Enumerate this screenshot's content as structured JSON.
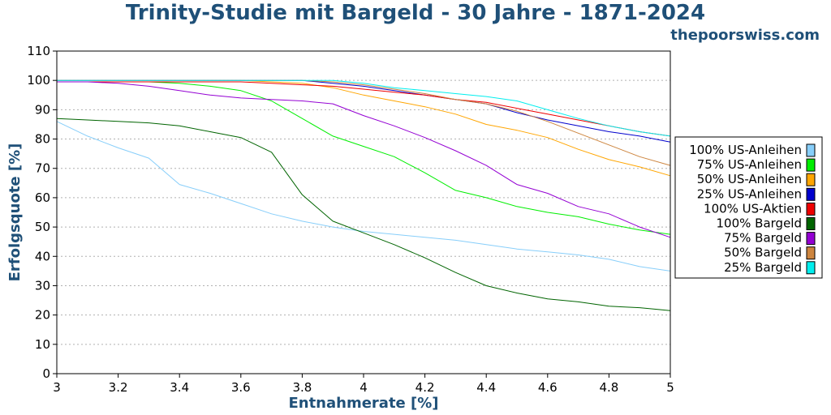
{
  "title": "Trinity-Studie mit Bargeld - 30 Jahre - 1871-2024",
  "site": "thepoorswiss.com",
  "chart_data": {
    "type": "line",
    "title": "Trinity-Studie mit Bargeld - 30 Jahre - 1871-2024",
    "xlabel": "Entnahmerate [%]",
    "ylabel": "Erfolgsquote [%]",
    "xlim": [
      3,
      5
    ],
    "ylim": [
      0,
      110
    ],
    "x_ticks": [
      "3",
      "3.2",
      "3.4",
      "3.6",
      "3.8",
      "4",
      "4.2",
      "4.4",
      "4.6",
      "4.8",
      "5"
    ],
    "y_ticks": [
      "0",
      "10",
      "20",
      "30",
      "40",
      "50",
      "60",
      "70",
      "80",
      "90",
      "100",
      "110"
    ],
    "grid": "horizontal dotted",
    "legend_position": "right",
    "x": [
      3.0,
      3.1,
      3.2,
      3.3,
      3.4,
      3.5,
      3.6,
      3.7,
      3.8,
      3.9,
      4.0,
      4.1,
      4.2,
      4.3,
      4.4,
      4.5,
      4.6,
      4.7,
      4.8,
      4.9,
      5.0
    ],
    "series": [
      {
        "name": "100% US-Anleihen",
        "color": "#87cefa",
        "values": [
          86,
          81,
          77,
          73.5,
          64.5,
          61.5,
          58,
          54.5,
          52,
          50,
          48.5,
          47.5,
          46.5,
          45.5,
          44,
          42.5,
          41.5,
          40.5,
          39,
          36.5,
          35
        ]
      },
      {
        "name": "75% US-Anleihen",
        "color": "#00ee00",
        "values": [
          99.5,
          99.5,
          99.5,
          99.5,
          99,
          98,
          96.5,
          93,
          87,
          81,
          77.5,
          74,
          68.5,
          62.5,
          60,
          57,
          55,
          53.5,
          51,
          49,
          47.5
        ]
      },
      {
        "name": "50% US-Anleihen",
        "color": "#ffa500",
        "values": [
          100,
          100,
          100,
          100,
          100,
          100,
          100,
          99.5,
          99,
          97.5,
          95,
          93,
          91,
          88.5,
          85,
          83,
          80.5,
          76.5,
          73,
          70.5,
          67.5
        ]
      },
      {
        "name": "25% US-Anleihen",
        "color": "#0000cd",
        "values": [
          100,
          100,
          100,
          100,
          100,
          100,
          100,
          100,
          100,
          99,
          98,
          96.5,
          95,
          93.5,
          92,
          89,
          86.5,
          84.5,
          82.5,
          81,
          79
        ]
      },
      {
        "name": "100% US-Aktien",
        "color": "#ee0000",
        "values": [
          99.5,
          99.5,
          99.5,
          99.5,
          99.5,
          99.5,
          99.5,
          99,
          98.5,
          98,
          97,
          96,
          95,
          93.5,
          92.5,
          90.5,
          88.5,
          86.5,
          84.5,
          82.5,
          81
        ]
      },
      {
        "name": "100% Bargeld",
        "color": "#006400",
        "values": [
          87,
          86.5,
          86,
          85.5,
          84.5,
          82.5,
          80.5,
          75.5,
          61,
          52,
          48,
          44,
          39.5,
          34.5,
          30,
          27.5,
          25.5,
          24.5,
          23,
          22.5,
          21.5
        ]
      },
      {
        "name": "75% Bargeld",
        "color": "#9400d3",
        "values": [
          99.5,
          99.5,
          99,
          98,
          96.5,
          95,
          94,
          93.5,
          93,
          92,
          88,
          84.5,
          80.5,
          76,
          71,
          64.5,
          61.5,
          57,
          54.5,
          50,
          46.5
        ]
      },
      {
        "name": "50% Bargeld",
        "color": "#cd853f",
        "values": [
          100,
          100,
          100,
          100,
          100,
          100,
          100,
          100,
          100,
          99.5,
          98.5,
          97,
          95.5,
          93.5,
          92,
          89.5,
          86,
          82,
          78,
          74,
          71
        ]
      },
      {
        "name": "25% Bargeld",
        "color": "#00eeee",
        "values": [
          100,
          100,
          100,
          100,
          100,
          100,
          100,
          100,
          100,
          100,
          99,
          97.5,
          96.5,
          95.5,
          94.5,
          93,
          90,
          87,
          84.5,
          82.5,
          81
        ]
      }
    ]
  }
}
